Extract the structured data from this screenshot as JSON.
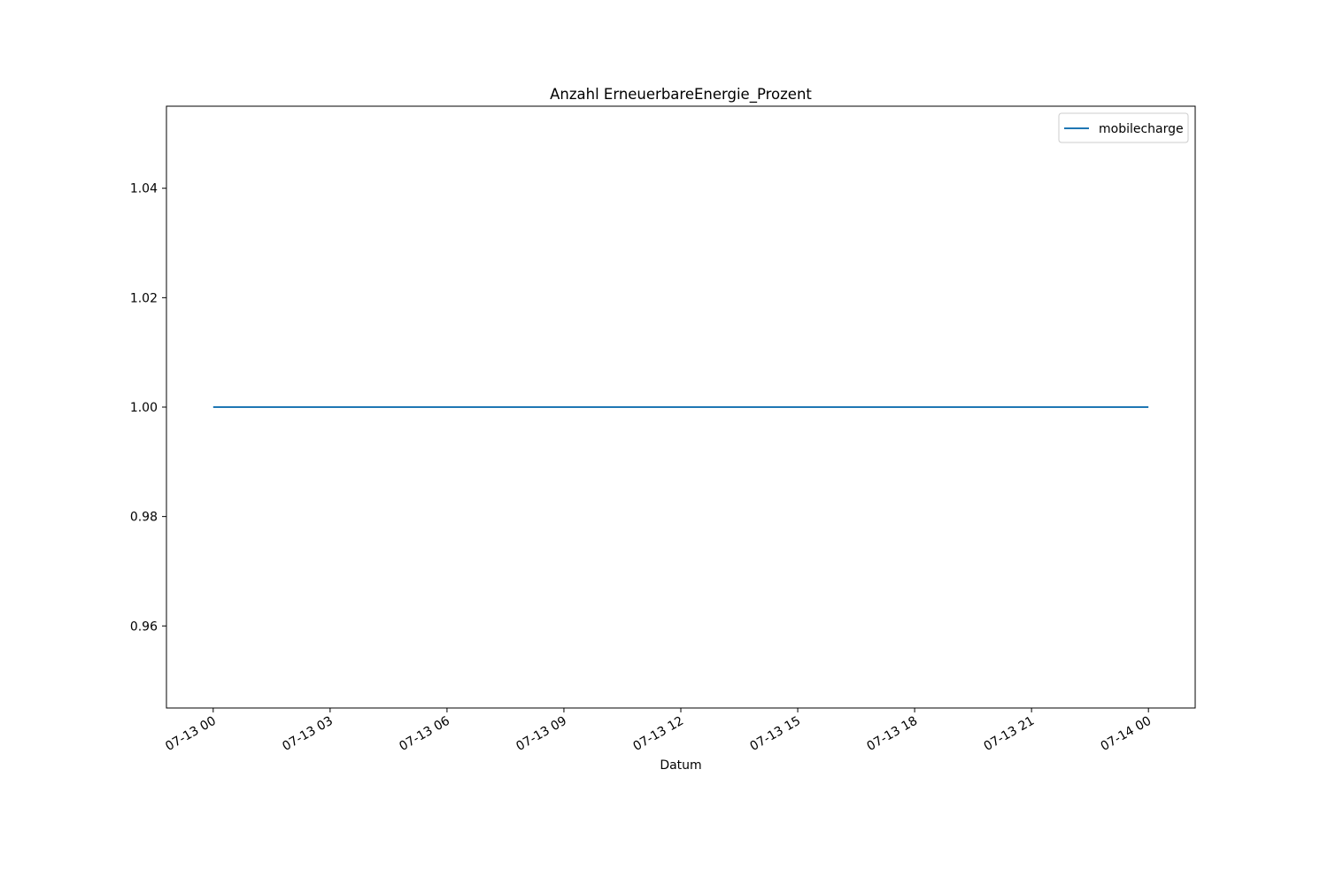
{
  "chart_data": {
    "type": "line",
    "title": "Anzahl ErneuerbareEnergie_Prozent",
    "xlabel": "Datum",
    "ylabel": "",
    "x_tick_labels": [
      "07-13 00",
      "07-13 03",
      "07-13 06",
      "07-13 09",
      "07-13 12",
      "07-13 15",
      "07-13 18",
      "07-13 21",
      "07-14 00"
    ],
    "x_tick_hours": [
      0,
      3,
      6,
      9,
      12,
      15,
      18,
      21,
      24
    ],
    "xlim_hours": [
      -1.2,
      25.2
    ],
    "y_ticks": [
      0.96,
      0.98,
      1.0,
      1.02,
      1.04
    ],
    "y_tick_labels": [
      "0.96",
      "0.98",
      "1.00",
      "1.02",
      "1.04"
    ],
    "ylim": [
      0.945,
      1.055
    ],
    "grid": false,
    "legend_position": "top-right",
    "series": [
      {
        "name": "mobilecharge",
        "color": "#1f77b4",
        "x_hours": [
          0,
          24
        ],
        "values": [
          1.0,
          1.0
        ]
      }
    ]
  }
}
